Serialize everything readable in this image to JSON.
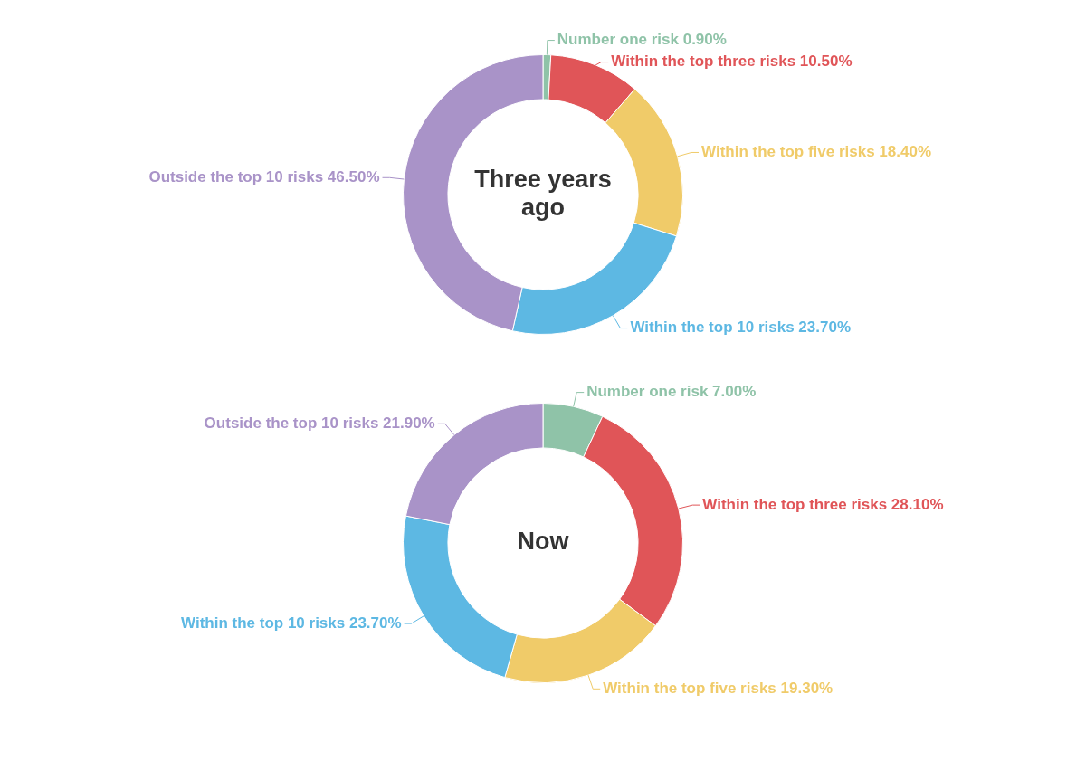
{
  "chart_data": [
    {
      "type": "donut",
      "title": "Three years ago",
      "categories": [
        "Number one risk",
        "Within the top three risks",
        "Within the top five risks",
        "Within the top 10 risks",
        "Outside the top 10 risks"
      ],
      "values": [
        0.9,
        10.5,
        18.4,
        23.7,
        46.5
      ],
      "value_labels": [
        "0.90%",
        "10.50%",
        "18.40%",
        "23.70%",
        "46.50%"
      ],
      "colors": [
        "#8fc3a8",
        "#e05558",
        "#f0cb69",
        "#5db8e3",
        "#a993c8"
      ],
      "legend": false
    },
    {
      "type": "donut",
      "title": "Now",
      "categories": [
        "Number one risk",
        "Within the top three risks",
        "Within the top five risks",
        "Within the top 10 risks",
        "Outside the top 10 risks"
      ],
      "values": [
        7.0,
        28.1,
        19.3,
        23.7,
        21.9
      ],
      "value_labels": [
        "7.00%",
        "28.10%",
        "19.30%",
        "23.70%",
        "21.90%"
      ],
      "colors": [
        "#8fc3a8",
        "#e05558",
        "#f0cb69",
        "#5db8e3",
        "#a993c8"
      ],
      "legend": false
    }
  ]
}
